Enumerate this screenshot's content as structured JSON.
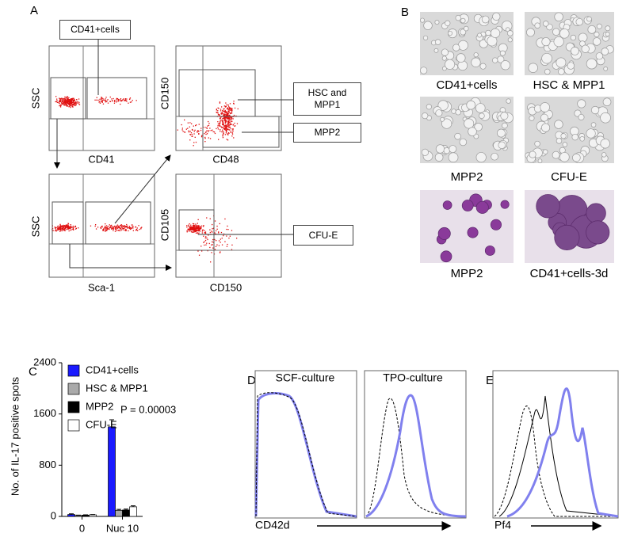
{
  "panel_a": {
    "label": "A",
    "plots": [
      {
        "x_label": "CD41",
        "y_label": "SSC"
      },
      {
        "x_label": "CD48",
        "y_label": "CD150"
      },
      {
        "x_label": "Sca-1",
        "y_label": "SSC"
      },
      {
        "x_label": "CD150",
        "y_label": "CD105"
      }
    ],
    "gate_labels": [
      "CD41+cells",
      "HSC and MPP1",
      "MPP2",
      "CFU-E"
    ]
  },
  "panel_b": {
    "label": "B",
    "captions": [
      "CD41+cells",
      "HSC & MPP1",
      "MPP2",
      "CFU-E",
      "MPP2",
      "CD41+cells-3d"
    ]
  },
  "chart_data": {
    "type": "bar",
    "panel_label": "C",
    "y_label": "No. of IL-17 positive spots",
    "categories": [
      "0",
      "Nuc 10"
    ],
    "series": [
      {
        "name": "CD41+cells",
        "color": "#1a1aff",
        "values": [
          30,
          1400
        ],
        "errors": [
          10,
          110
        ]
      },
      {
        "name": "HSC & MPP1",
        "color": "#aaaaaa",
        "values": [
          15,
          95
        ],
        "errors": [
          5,
          15
        ]
      },
      {
        "name": "MPP2",
        "color": "#000000",
        "values": [
          20,
          100
        ],
        "errors": [
          5,
          15
        ]
      },
      {
        "name": "CFU-E",
        "color": "#ffffff",
        "values": [
          25,
          150
        ],
        "errors": [
          5,
          15
        ]
      }
    ],
    "annotation": "P = 0.00003",
    "ylim": [
      0,
      2400
    ],
    "yticks": [
      0,
      800,
      1600,
      2400
    ]
  },
  "panel_d": {
    "label": "D",
    "titles": [
      "SCF-culture",
      "TPO-culture"
    ],
    "x_label": "CD42d"
  },
  "panel_e": {
    "label": "E",
    "x_label": "Pf4"
  }
}
